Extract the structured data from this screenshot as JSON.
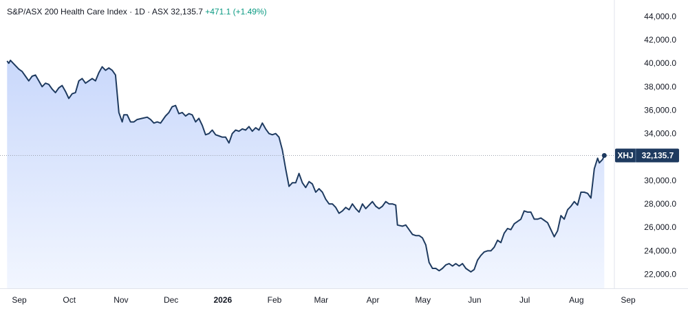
{
  "header": {
    "name": "S&P/ASX 200 Health Care Index",
    "interval": "1D",
    "exchange": "ASX",
    "price": "32,135.7",
    "change": "+471.1 (+1.49%)",
    "separator": "·"
  },
  "colors": {
    "line": "#1e3a5f",
    "fill_top": "#c9d8fb",
    "fill_bottom": "#f2f6ff",
    "label_bg": "#1e3a5f",
    "change_green": "#089981"
  },
  "chart_data": {
    "type": "area",
    "title": "S&P/ASX 200 Health Care Index",
    "xlabel": "",
    "ylabel": "",
    "ylim": [
      20800,
      45400
    ],
    "y_ticks": [
      "22,000.0",
      "24,000.0",
      "26,000.0",
      "28,000.0",
      "30,000.0",
      "32,000.0",
      "34,000.0",
      "36,000.0",
      "38,000.0",
      "40,000.0",
      "42,000.0",
      "44,000.0"
    ],
    "y_tick_values": [
      22000,
      24000,
      26000,
      28000,
      30000,
      32000,
      34000,
      36000,
      38000,
      40000,
      42000,
      44000
    ],
    "x_ticks": [
      {
        "label": "Sep",
        "date": "2025-09-01"
      },
      {
        "label": "Oct",
        "date": "2025-10-01"
      },
      {
        "label": "Nov",
        "date": "2025-11-01"
      },
      {
        "label": "Dec",
        "date": "2025-12-01"
      },
      {
        "label": "2026",
        "date": "2026-01-01",
        "bold": true
      },
      {
        "label": "Feb",
        "date": "2026-02-01"
      },
      {
        "label": "Mar",
        "date": "2026-03-01"
      },
      {
        "label": "Apr",
        "date": "2026-04-01"
      },
      {
        "label": "May",
        "date": "2026-05-01"
      },
      {
        "label": "Jun",
        "date": "2026-06-01"
      },
      {
        "label": "Jul",
        "date": "2026-07-01"
      },
      {
        "label": "Aug",
        "date": "2026-08-01"
      },
      {
        "label": "Sep",
        "date": "2026-09-01"
      }
    ],
    "last_label": {
      "symbol": "XHJ",
      "value": 32135.7,
      "text": "32,135.7"
    },
    "series": [
      {
        "points": [
          [
            "2025-08-28",
            40200
          ],
          [
            "2025-08-29",
            40000
          ],
          [
            "2025-08-30",
            40250
          ],
          [
            "2025-09-02",
            39800
          ],
          [
            "2025-09-04",
            39500
          ],
          [
            "2025-09-06",
            39300
          ],
          [
            "2025-09-08",
            38900
          ],
          [
            "2025-09-10",
            38500
          ],
          [
            "2025-09-12",
            38900
          ],
          [
            "2025-09-14",
            39000
          ],
          [
            "2025-09-16",
            38500
          ],
          [
            "2025-09-18",
            38000
          ],
          [
            "2025-09-20",
            38300
          ],
          [
            "2025-09-22",
            38200
          ],
          [
            "2025-09-24",
            37800
          ],
          [
            "2025-09-26",
            37500
          ],
          [
            "2025-09-28",
            37900
          ],
          [
            "2025-09-30",
            38100
          ],
          [
            "2025-10-02",
            37600
          ],
          [
            "2025-10-04",
            37000
          ],
          [
            "2025-10-06",
            37400
          ],
          [
            "2025-10-08",
            37500
          ],
          [
            "2025-10-10",
            38500
          ],
          [
            "2025-10-12",
            38700
          ],
          [
            "2025-10-14",
            38300
          ],
          [
            "2025-10-16",
            38500
          ],
          [
            "2025-10-18",
            38700
          ],
          [
            "2025-10-20",
            38500
          ],
          [
            "2025-10-22",
            39200
          ],
          [
            "2025-10-24",
            39700
          ],
          [
            "2025-10-26",
            39400
          ],
          [
            "2025-10-28",
            39600
          ],
          [
            "2025-10-30",
            39400
          ],
          [
            "2025-11-01",
            39000
          ],
          [
            "2025-11-03",
            35800
          ],
          [
            "2025-11-05",
            35000
          ],
          [
            "2025-11-06",
            35600
          ],
          [
            "2025-11-08",
            35600
          ],
          [
            "2025-11-10",
            35000
          ],
          [
            "2025-11-12",
            35000
          ],
          [
            "2025-11-14",
            35200
          ],
          [
            "2025-11-17",
            35300
          ],
          [
            "2025-11-20",
            35400
          ],
          [
            "2025-11-22",
            35200
          ],
          [
            "2025-11-24",
            34900
          ],
          [
            "2025-11-26",
            35000
          ],
          [
            "2025-11-28",
            34900
          ],
          [
            "2025-12-01",
            35500
          ],
          [
            "2025-12-03",
            35800
          ],
          [
            "2025-12-05",
            36300
          ],
          [
            "2025-12-07",
            36400
          ],
          [
            "2025-12-09",
            35700
          ],
          [
            "2025-12-11",
            35800
          ],
          [
            "2025-12-13",
            35500
          ],
          [
            "2025-12-15",
            35700
          ],
          [
            "2025-12-17",
            35600
          ],
          [
            "2025-12-19",
            35000
          ],
          [
            "2025-12-21",
            35300
          ],
          [
            "2025-12-23",
            34700
          ],
          [
            "2025-12-25",
            33900
          ],
          [
            "2025-12-27",
            34000
          ],
          [
            "2025-12-29",
            34300
          ],
          [
            "2025-12-31",
            33900
          ],
          [
            "2026-01-02",
            33800
          ],
          [
            "2026-01-04",
            33700
          ],
          [
            "2026-01-06",
            33700
          ],
          [
            "2026-01-08",
            33200
          ],
          [
            "2026-01-10",
            34000
          ],
          [
            "2026-01-12",
            34300
          ],
          [
            "2026-01-14",
            34200
          ],
          [
            "2026-01-16",
            34400
          ],
          [
            "2026-01-18",
            34300
          ],
          [
            "2026-01-20",
            34600
          ],
          [
            "2026-01-22",
            34200
          ],
          [
            "2026-01-24",
            34500
          ],
          [
            "2026-01-26",
            34300
          ],
          [
            "2026-01-28",
            34900
          ],
          [
            "2026-01-30",
            34400
          ],
          [
            "2026-02-01",
            34000
          ],
          [
            "2026-02-03",
            33900
          ],
          [
            "2026-02-05",
            34000
          ],
          [
            "2026-02-07",
            33700
          ],
          [
            "2026-02-09",
            32600
          ],
          [
            "2026-02-11",
            31000
          ],
          [
            "2026-02-13",
            29500
          ],
          [
            "2026-02-15",
            29800
          ],
          [
            "2026-02-17",
            29800
          ],
          [
            "2026-02-19",
            30600
          ],
          [
            "2026-02-21",
            29800
          ],
          [
            "2026-02-23",
            29400
          ],
          [
            "2026-02-25",
            29900
          ],
          [
            "2026-02-27",
            29700
          ],
          [
            "2026-03-01",
            29000
          ],
          [
            "2026-03-03",
            29300
          ],
          [
            "2026-03-05",
            29000
          ],
          [
            "2026-03-07",
            28400
          ],
          [
            "2026-03-09",
            28000
          ],
          [
            "2026-03-11",
            28000
          ],
          [
            "2026-03-13",
            27700
          ],
          [
            "2026-03-15",
            27200
          ],
          [
            "2026-03-17",
            27400
          ],
          [
            "2026-03-19",
            27700
          ],
          [
            "2026-03-21",
            27500
          ],
          [
            "2026-03-23",
            28000
          ],
          [
            "2026-03-25",
            27600
          ],
          [
            "2026-03-27",
            27300
          ],
          [
            "2026-03-29",
            28000
          ],
          [
            "2026-03-31",
            27600
          ],
          [
            "2026-04-02",
            27900
          ],
          [
            "2026-04-04",
            28200
          ],
          [
            "2026-04-06",
            27800
          ],
          [
            "2026-04-08",
            27600
          ],
          [
            "2026-04-10",
            27800
          ],
          [
            "2026-04-12",
            28200
          ],
          [
            "2026-04-14",
            28000
          ],
          [
            "2026-04-16",
            28000
          ],
          [
            "2026-04-18",
            27900
          ],
          [
            "2026-04-19",
            26200
          ],
          [
            "2026-04-22",
            26100
          ],
          [
            "2026-04-24",
            26200
          ],
          [
            "2026-04-26",
            25800
          ],
          [
            "2026-04-28",
            25400
          ],
          [
            "2026-04-30",
            25300
          ],
          [
            "2026-05-02",
            25300
          ],
          [
            "2026-05-04",
            25100
          ],
          [
            "2026-05-06",
            24500
          ],
          [
            "2026-05-08",
            23000
          ],
          [
            "2026-05-10",
            22500
          ],
          [
            "2026-05-12",
            22500
          ],
          [
            "2026-05-14",
            22300
          ],
          [
            "2026-05-16",
            22500
          ],
          [
            "2026-05-18",
            22800
          ],
          [
            "2026-05-20",
            22900
          ],
          [
            "2026-05-22",
            22700
          ],
          [
            "2026-05-24",
            22900
          ],
          [
            "2026-05-26",
            22700
          ],
          [
            "2026-05-28",
            22900
          ],
          [
            "2026-05-30",
            22500
          ],
          [
            "2026-06-02",
            22200
          ],
          [
            "2026-06-04",
            22400
          ],
          [
            "2026-06-06",
            23200
          ],
          [
            "2026-06-08",
            23600
          ],
          [
            "2026-06-10",
            23900
          ],
          [
            "2026-06-12",
            24000
          ],
          [
            "2026-06-14",
            24000
          ],
          [
            "2026-06-16",
            24300
          ],
          [
            "2026-06-18",
            24900
          ],
          [
            "2026-06-20",
            24700
          ],
          [
            "2026-06-22",
            25500
          ],
          [
            "2026-06-24",
            25900
          ],
          [
            "2026-06-26",
            25800
          ],
          [
            "2026-06-28",
            26300
          ],
          [
            "2026-06-30",
            26500
          ],
          [
            "2026-07-02",
            26700
          ],
          [
            "2026-07-04",
            27400
          ],
          [
            "2026-07-06",
            27300
          ],
          [
            "2026-07-08",
            27300
          ],
          [
            "2026-07-10",
            26700
          ],
          [
            "2026-07-12",
            26700
          ],
          [
            "2026-07-14",
            26800
          ],
          [
            "2026-07-16",
            26600
          ],
          [
            "2026-07-18",
            26400
          ],
          [
            "2026-07-20",
            25800
          ],
          [
            "2026-07-22",
            25200
          ],
          [
            "2026-07-24",
            25700
          ],
          [
            "2026-07-26",
            27000
          ],
          [
            "2026-07-28",
            26700
          ],
          [
            "2026-07-30",
            27500
          ],
          [
            "2026-08-01",
            27800
          ],
          [
            "2026-08-03",
            28200
          ],
          [
            "2026-08-05",
            27900
          ],
          [
            "2026-08-07",
            29000
          ],
          [
            "2026-08-09",
            29000
          ],
          [
            "2026-08-11",
            28900
          ],
          [
            "2026-08-13",
            28500
          ],
          [
            "2026-08-15",
            31000
          ],
          [
            "2026-08-17",
            31900
          ],
          [
            "2026-08-18",
            31500
          ],
          [
            "2026-08-20",
            31800
          ],
          [
            "2026-08-21",
            32135.7
          ]
        ]
      }
    ]
  }
}
